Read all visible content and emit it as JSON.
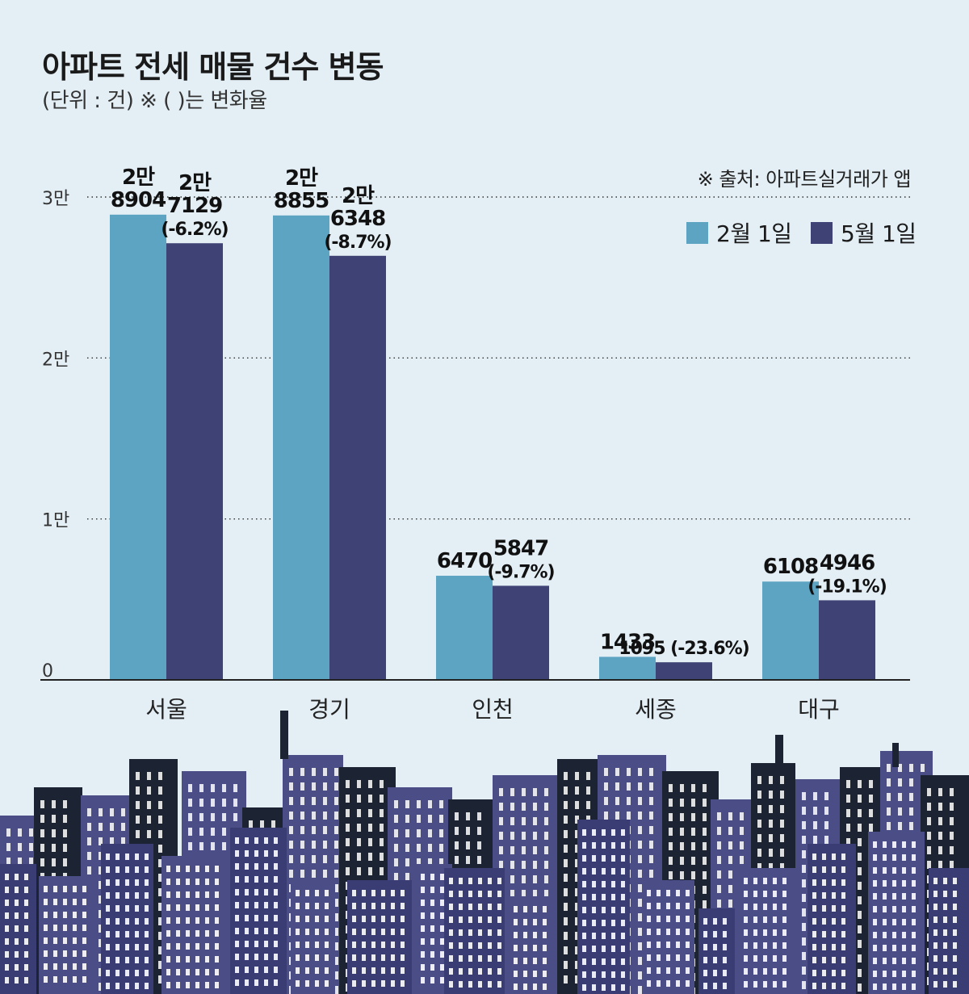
{
  "title": "아파트 전세 매물 건수 변동",
  "subtitle": "(단위 : 건) ※ ( )는 변화율",
  "source": "※ 출처: 아파트실거래가 앱",
  "colors": {
    "background": "#e3eef5",
    "feb": "#5da3c2",
    "may": "#3f4274",
    "skyline_dark": "#1c2434",
    "skyline_building": "#4a4d86"
  },
  "chart_data": {
    "type": "bar",
    "title": "아파트 전세 매물 건수 변동",
    "categories": [
      "서울",
      "경기",
      "인천",
      "세종",
      "대구"
    ],
    "series": [
      {
        "name": "2월 1일",
        "values": [
          28904,
          28855,
          6470,
          1433,
          6108
        ],
        "labels": [
          [
            "2만",
            "8904"
          ],
          [
            "2만",
            "8855"
          ],
          [
            "6470"
          ],
          [
            "1433"
          ],
          [
            "6108"
          ]
        ]
      },
      {
        "name": "5월 1일",
        "values": [
          27129,
          26348,
          5847,
          1095,
          4946
        ],
        "labels": [
          [
            "2만",
            "7129",
            "(-6.2%)"
          ],
          [
            "2만",
            "6348",
            "(-8.7%)"
          ],
          [
            "5847",
            "(-9.7%)"
          ],
          [
            "1095 (-23.6%)"
          ],
          [
            "4946",
            "(-19.1%)"
          ]
        ]
      }
    ],
    "yticks": [
      {
        "value": 0,
        "label": "0"
      },
      {
        "value": 10000,
        "label": "1만"
      },
      {
        "value": 20000,
        "label": "2만"
      },
      {
        "value": 30000,
        "label": "3만"
      }
    ],
    "ylim": [
      0,
      30000
    ],
    "grid": true,
    "legend_position": "top-right"
  }
}
